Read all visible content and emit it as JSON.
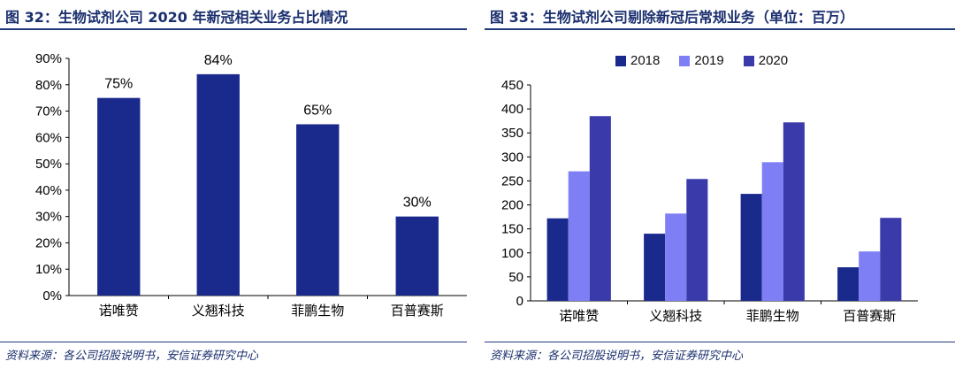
{
  "colors": {
    "accent": "#1a2f6e",
    "rule": "#1f3a7a",
    "s2018": "#1a2a8c",
    "s2019": "#7f7ff5",
    "s2020": "#3a3aaa"
  },
  "left": {
    "title": "图 32：生物试剂公司 2020 年新冠相关业务占比情况",
    "source": "资料来源：各公司招股说明书，安信证券研究中心"
  },
  "right": {
    "title": "图 33：生物试剂公司剔除新冠后常规业务（单位：百万）",
    "source": "资料来源：各公司招股说明书，安信证券研究中心"
  },
  "chart_data": [
    {
      "type": "bar",
      "categories": [
        "诺唯赞",
        "义翘科技",
        "菲鹏生物",
        "百普赛斯"
      ],
      "values": [
        75,
        84,
        65,
        30
      ],
      "value_labels": [
        "75%",
        "84%",
        "65%",
        "30%"
      ],
      "ytick_labels": [
        "0%",
        "10%",
        "20%",
        "30%",
        "40%",
        "50%",
        "60%",
        "70%",
        "80%",
        "90%"
      ],
      "ylim": [
        0,
        90
      ],
      "ystep": 10,
      "grid": false
    },
    {
      "type": "bar",
      "categories": [
        "诺唯赞",
        "义翘科技",
        "菲鹏生物",
        "百普赛斯"
      ],
      "series": [
        {
          "name": "2018",
          "values": [
            172,
            140,
            223,
            70
          ]
        },
        {
          "name": "2019",
          "values": [
            270,
            182,
            289,
            103
          ]
        },
        {
          "name": "2020",
          "values": [
            385,
            254,
            372,
            173
          ]
        }
      ],
      "ytick_labels": [
        "0",
        "50",
        "100",
        "150",
        "200",
        "250",
        "300",
        "350",
        "400",
        "450"
      ],
      "ylim": [
        0,
        450
      ],
      "ystep": 50,
      "legend": "top",
      "grid": false
    }
  ]
}
